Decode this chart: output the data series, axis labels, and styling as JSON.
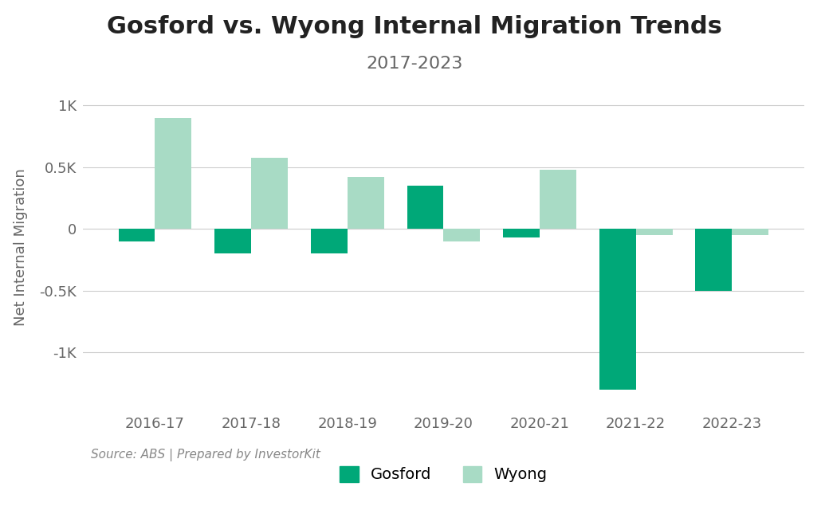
{
  "title": "Gosford vs. Wyong Internal Migration Trends",
  "subtitle": "2017-2023",
  "ylabel": "Net Internal Migration",
  "source_text": "Source: ABS | Prepared by InvestorKit",
  "categories": [
    "2016-17",
    "2017-18",
    "2018-19",
    "2019-20",
    "2020-21",
    "2021-22",
    "2022-23"
  ],
  "gosford_values": [
    -100,
    -200,
    -200,
    350,
    -70,
    -1300,
    -500
  ],
  "wyong_values": [
    900,
    575,
    420,
    -100,
    480,
    -50,
    -50
  ],
  "gosford_color": "#00A878",
  "wyong_color": "#A8DBC5",
  "background_color": "#FFFFFF",
  "grid_color": "#CCCCCC",
  "ylim": [
    -1450,
    1150
  ],
  "yticks": [
    -1000,
    -500,
    0,
    500,
    1000
  ],
  "ytick_labels": [
    "-1K",
    "-0.5K",
    "0",
    "0.5K",
    "1K"
  ],
  "bar_width": 0.38,
  "title_fontsize": 22,
  "subtitle_fontsize": 16,
  "label_fontsize": 13,
  "tick_fontsize": 13,
  "legend_fontsize": 14,
  "source_fontsize": 11
}
